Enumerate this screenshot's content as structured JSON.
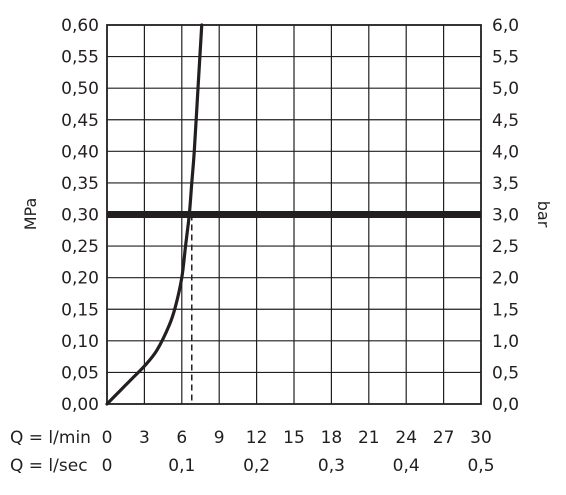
{
  "chart_data": {
    "type": "line",
    "xlim": [
      0,
      30
    ],
    "ylim": [
      0,
      0.6
    ],
    "grid": true,
    "x_ticks_lmin": [
      "0",
      "3",
      "6",
      "9",
      "12",
      "15",
      "18",
      "21",
      "24",
      "27",
      "30"
    ],
    "x_ticks_lsec": [
      "0",
      "0,1",
      "0,2",
      "0,3",
      "0,4",
      "0,5"
    ],
    "x_ticks_lsec_values": [
      0,
      6,
      12,
      18,
      24,
      30
    ],
    "x_label_lmin": "Q = l/min",
    "x_label_lsec": "Q = l/sec",
    "y_ticks_mpa": [
      "0,00",
      "0,05",
      "0,10",
      "0,15",
      "0,20",
      "0,25",
      "0,30",
      "0,35",
      "0,40",
      "0,45",
      "0,50",
      "0,55",
      "0,60"
    ],
    "y_ticks_bar": [
      "0,0",
      "0,5",
      "1,0",
      "1,5",
      "2,0",
      "2,5",
      "3,0",
      "3,5",
      "4,0",
      "4,5",
      "5,0",
      "5,5",
      "6,0"
    ],
    "ylabel_left": "MPa",
    "ylabel_right": "bar",
    "series": [
      {
        "x": [
          0,
          1,
          2,
          3,
          4,
          5,
          5.5,
          6,
          6.3,
          6.6,
          6.8,
          7.0,
          7.3,
          7.6
        ],
        "y": [
          0,
          0.02,
          0.04,
          0.06,
          0.085,
          0.125,
          0.155,
          0.2,
          0.25,
          0.3,
          0.35,
          0.4,
          0.5,
          0.6
        ]
      }
    ],
    "reference_line": {
      "y": 0.3
    },
    "marker": {
      "x": 6.8,
      "y": 0.3
    }
  }
}
